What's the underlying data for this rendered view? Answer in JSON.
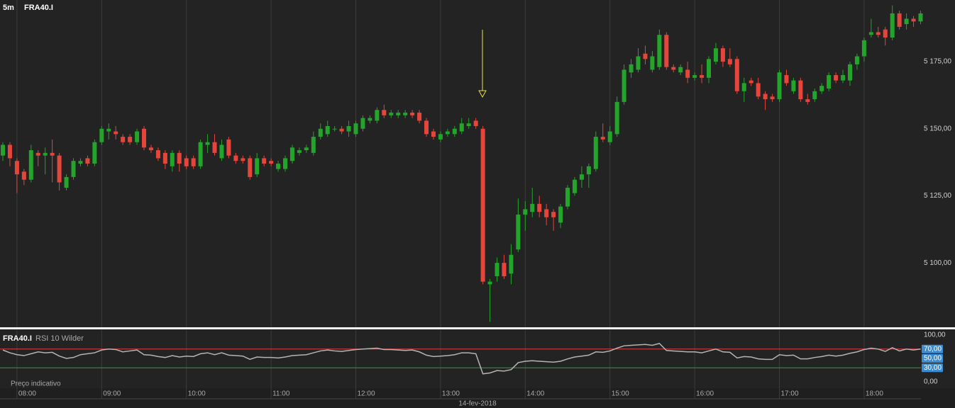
{
  "chart_data": [
    {
      "type": "candlestick",
      "title": "FRA40.I",
      "interval": "5m",
      "categories": [
        null,
        null,
        "08:00",
        null,
        null,
        null,
        null,
        null,
        null,
        null,
        null,
        null,
        null,
        null,
        "09:00",
        null,
        null,
        null,
        null,
        null,
        null,
        null,
        null,
        null,
        null,
        null,
        "10:00",
        null,
        null,
        null,
        null,
        null,
        null,
        null,
        null,
        null,
        null,
        null,
        "11:00",
        null,
        null,
        null,
        null,
        null,
        null,
        null,
        null,
        null,
        null,
        null,
        "12:00",
        null,
        null,
        null,
        null,
        null,
        null,
        null,
        null,
        null,
        null,
        null,
        "13:00",
        null,
        null,
        null,
        null,
        null,
        null,
        null,
        null,
        null,
        null,
        null,
        "14:00",
        null,
        null,
        null,
        null,
        null,
        null,
        null,
        null,
        null,
        null,
        null,
        "15:00",
        null,
        null,
        null,
        null,
        null,
        null,
        null,
        null,
        null,
        null,
        null,
        "16:00",
        null,
        null,
        null,
        null,
        null,
        null,
        null,
        null,
        null,
        null,
        null,
        "17:00",
        null,
        null,
        null,
        null,
        null,
        null,
        null,
        null,
        null,
        null,
        null,
        "18:00",
        null,
        null,
        null,
        null,
        null,
        null,
        null,
        null
      ],
      "open": [
        5140,
        5144,
        5138,
        5134,
        5131,
        5141,
        5140,
        5141,
        5140,
        5128,
        5132,
        5137,
        5139,
        5137,
        5145,
        5149,
        5149,
        5147,
        5147,
        5145,
        5150,
        5143,
        5142,
        5141,
        5136,
        5141,
        5139,
        5139,
        5136,
        5144,
        5145,
        5139,
        5146,
        5140,
        5139,
        5139,
        5133,
        5139,
        5138,
        5135,
        5135,
        5138,
        5141,
        5142,
        5141,
        5147,
        5148,
        5150,
        5150,
        5149,
        5148,
        5150,
        5153,
        5153,
        5157,
        5155,
        5155,
        5155,
        5156,
        5156,
        5153,
        5149,
        5146,
        5148,
        5148,
        5149,
        5151,
        5153,
        5150,
        5092,
        5095,
        5100,
        5096,
        5105,
        5118,
        5119,
        5122,
        5120,
        5119,
        5115,
        5121,
        5126,
        5131,
        5133,
        5135,
        5147,
        5145,
        5148,
        5160,
        5171,
        5172,
        5178,
        5172,
        5173,
        5185,
        5173,
        5171,
        5172,
        5169,
        5170,
        5169,
        5175,
        5180,
        5176,
        5176,
        5164,
        5168,
        5167,
        5163,
        5162,
        5161,
        5170,
        5164,
        5168,
        5161,
        5161,
        5164,
        5165,
        5170,
        5168,
        5168,
        5174,
        5177,
        5185,
        5186,
        5187,
        5184,
        5193,
        5189,
        5191,
        5190
      ],
      "high": [
        5145,
        5145,
        5139,
        5135,
        5144,
        5142,
        5143,
        5146,
        5141,
        5133,
        5139,
        5139,
        5140,
        5146,
        5151,
        5152,
        5151,
        5148,
        5148,
        5150,
        5151,
        5144,
        5143,
        5142,
        5142,
        5142,
        5140,
        5140,
        5146,
        5148,
        5148,
        5146,
        5147,
        5141,
        5140,
        5140,
        5141,
        5140,
        5139,
        5138,
        5140,
        5144,
        5143,
        5144,
        5149,
        5152,
        5153,
        5151,
        5151,
        5153,
        5153,
        5155,
        5155,
        5158,
        5159,
        5157,
        5157,
        5157,
        5157,
        5157,
        5154,
        5150,
        5149,
        5150,
        5151,
        5154,
        5154,
        5154,
        5151,
        5094,
        5102,
        5103,
        5107,
        5124,
        5123,
        5128,
        5125,
        5122,
        5120,
        5122,
        5129,
        5132,
        5136,
        5137,
        5149,
        5152,
        5151,
        5162,
        5174,
        5176,
        5180,
        5181,
        5179,
        5187,
        5186,
        5174,
        5174,
        5175,
        5171,
        5174,
        5177,
        5182,
        5181,
        5180,
        5177,
        5169,
        5169,
        5169,
        5164,
        5163,
        5172,
        5172,
        5169,
        5169,
        5163,
        5165,
        5167,
        5171,
        5171,
        5172,
        5175,
        5178,
        5184,
        5191,
        5188,
        5188,
        5196,
        5194,
        5193,
        5192,
        5194
      ],
      "low": [
        5138,
        5136,
        5126,
        5129,
        5130,
        5136,
        5133,
        5130,
        5127,
        5127,
        5131,
        5136,
        5136,
        5136,
        5144,
        5146,
        5146,
        5144,
        5144,
        5144,
        5142,
        5141,
        5138,
        5135,
        5134,
        5134,
        5135,
        5135,
        5135,
        5141,
        5140,
        5138,
        5139,
        5137,
        5137,
        5131,
        5132,
        5136,
        5136,
        5134,
        5134,
        5137,
        5140,
        5141,
        5140,
        5146,
        5147,
        5149,
        5148,
        5147,
        5147,
        5149,
        5152,
        5152,
        5154,
        5154,
        5154,
        5154,
        5154,
        5152,
        5147,
        5146,
        5145,
        5147,
        5147,
        5148,
        5150,
        5150,
        5092,
        5078,
        5093,
        5094,
        5092,
        5104,
        5112,
        5117,
        5117,
        5114,
        5112,
        5113,
        5120,
        5125,
        5128,
        5128,
        5134,
        5145,
        5144,
        5147,
        5159,
        5169,
        5171,
        5174,
        5171,
        5172,
        5172,
        5171,
        5170,
        5167,
        5168,
        5167,
        5167,
        5174,
        5173,
        5173,
        5163,
        5160,
        5166,
        5161,
        5157,
        5160,
        5160,
        5166,
        5163,
        5160,
        5159,
        5160,
        5163,
        5164,
        5167,
        5167,
        5166,
        5172,
        5175,
        5184,
        5184,
        5181,
        5183,
        5187,
        5187,
        5188,
        5189
      ],
      "close": [
        5144,
        5139,
        5133,
        5131,
        5142,
        5140,
        5141,
        5140,
        5130,
        5132,
        5138,
        5138,
        5137,
        5145,
        5150,
        5150,
        5148,
        5145,
        5145,
        5149,
        5143,
        5142,
        5139,
        5137,
        5141,
        5137,
        5136,
        5136,
        5145,
        5145,
        5141,
        5144,
        5140,
        5138,
        5138,
        5132,
        5139,
        5137,
        5137,
        5137,
        5139,
        5143,
        5142,
        5143,
        5147,
        5150,
        5151,
        5150,
        5149,
        5151,
        5152,
        5154,
        5154,
        5157,
        5155,
        5156,
        5156,
        5156,
        5155,
        5153,
        5148,
        5147,
        5148,
        5149,
        5150,
        5152,
        5152,
        5151,
        5093,
        5093,
        5100,
        5095,
        5103,
        5118,
        5120,
        5122,
        5119,
        5117,
        5117,
        5121,
        5128,
        5131,
        5133,
        5136,
        5147,
        5146,
        5149,
        5160,
        5172,
        5174,
        5177,
        5176,
        5177,
        5185,
        5173,
        5172,
        5173,
        5169,
        5170,
        5169,
        5176,
        5180,
        5175,
        5174,
        5164,
        5167,
        5167,
        5162,
        5161,
        5161,
        5171,
        5167,
        5168,
        5161,
        5160,
        5164,
        5166,
        5170,
        5168,
        5170,
        5174,
        5177,
        5183,
        5186,
        5185,
        5184,
        5193,
        5188,
        5191,
        5190,
        5193
      ],
      "up_color": "#22a52a",
      "down_color": "#e5463c",
      "ylim": [
        5076,
        5198
      ],
      "yticks": [
        {
          "value": 5100,
          "label": "5 100,00"
        },
        {
          "value": 5125,
          "label": "5 125,00"
        },
        {
          "value": 5150,
          "label": "5 150,00"
        },
        {
          "value": 5175,
          "label": "5 175,00"
        }
      ],
      "xgrid": true
    },
    {
      "type": "line",
      "title": "FRA40.I",
      "series": [
        {
          "name": "RSI 10 Wilder",
          "color": "#b4b4b4",
          "values": [
            68,
            62,
            58,
            56,
            60,
            64,
            62,
            63,
            55,
            50,
            52,
            58,
            60,
            62,
            68,
            70,
            69,
            64,
            66,
            68,
            58,
            57,
            54,
            52,
            56,
            53,
            55,
            54,
            60,
            62,
            58,
            62,
            57,
            56,
            55,
            48,
            53,
            52,
            52,
            51,
            53,
            56,
            57,
            58,
            62,
            66,
            68,
            66,
            65,
            67,
            69,
            70,
            71,
            72,
            69,
            69,
            68,
            67,
            68,
            64,
            57,
            54,
            55,
            56,
            58,
            62,
            62,
            60,
            17,
            19,
            24,
            23,
            26,
            41,
            44,
            45,
            44,
            43,
            42,
            44,
            49,
            53,
            55,
            57,
            64,
            63,
            66,
            72,
            77,
            78,
            79,
            80,
            78,
            82,
            67,
            66,
            65,
            64,
            64,
            62,
            66,
            70,
            64,
            63,
            51,
            54,
            53,
            49,
            48,
            48,
            58,
            56,
            57,
            49,
            49,
            52,
            54,
            57,
            55,
            57,
            61,
            64,
            69,
            72,
            70,
            65,
            73,
            66,
            70,
            68,
            70
          ]
        }
      ],
      "ylim": [
        0,
        100
      ],
      "yticks": [
        {
          "value": 0,
          "label": "0,00"
        },
        {
          "value": 30,
          "label": "30,00",
          "line_color": "#2aa52a",
          "box": "#3a8dd4"
        },
        {
          "value": 50,
          "label": "50,00",
          "box": "#3a8dd4"
        },
        {
          "value": 70,
          "label": "70,00",
          "line_color": "#e04040",
          "box": "#3a8dd4"
        },
        {
          "value": 100,
          "label": "100,00"
        }
      ],
      "note": "Preço indicativo",
      "xlabel": "14-fev-2018"
    }
  ]
}
